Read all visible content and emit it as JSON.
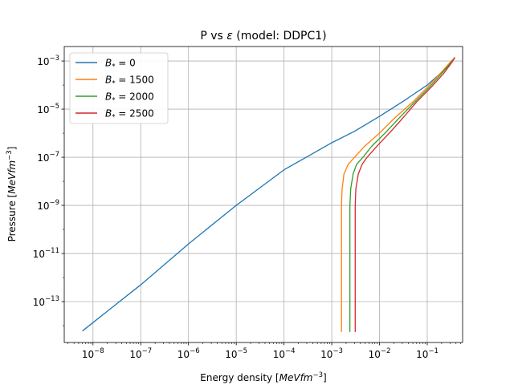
{
  "chart_data": {
    "type": "line",
    "title": "P vs ε (model: DDPC1)",
    "title_parts": [
      "P vs ",
      "ε",
      " (model: DDPC1)"
    ],
    "xlabel": "Energy density [MeVfm⁻³]",
    "xlabel_parts": [
      "Energy density [",
      "MeVfm",
      "−3",
      "]"
    ],
    "ylabel": "Pressure [MeVfm⁻³]",
    "ylabel_parts": [
      "Pressure [",
      "MeVfm",
      "−3",
      "]"
    ],
    "x_scale": "log",
    "y_scale": "log",
    "xlim": [
      2.5e-09,
      0.55
    ],
    "ylim": [
      2e-15,
      0.004
    ],
    "grid": true,
    "legend_position": "top-left",
    "x_major_ticks": [
      {
        "exp": -8,
        "label": "10",
        "sup": "−8"
      },
      {
        "exp": -7,
        "label": "10",
        "sup": "−7"
      },
      {
        "exp": -6,
        "label": "10",
        "sup": "−6"
      },
      {
        "exp": -5,
        "label": "10",
        "sup": "−5"
      },
      {
        "exp": -4,
        "label": "10",
        "sup": "−4"
      },
      {
        "exp": -3,
        "label": "10",
        "sup": "−3"
      },
      {
        "exp": -2,
        "label": "10",
        "sup": "−2"
      },
      {
        "exp": -1,
        "label": "10",
        "sup": "−1"
      }
    ],
    "y_major_ticks": [
      {
        "exp": -13,
        "label": "10",
        "sup": "−13"
      },
      {
        "exp": -11,
        "label": "10",
        "sup": "−11"
      },
      {
        "exp": -9,
        "label": "10",
        "sup": "−9"
      },
      {
        "exp": -7,
        "label": "10",
        "sup": "−7"
      },
      {
        "exp": -5,
        "label": "10",
        "sup": "−5"
      },
      {
        "exp": -3,
        "label": "10",
        "sup": "−3"
      }
    ],
    "series": [
      {
        "name": "B* = 0",
        "label_parts": [
          "B",
          "*",
          " = 0"
        ],
        "color": "#1f77b4",
        "points": [
          [
            6e-09,
            6e-15
          ],
          [
            2e-08,
            4e-14
          ],
          [
            1e-07,
            5e-13
          ],
          [
            1e-06,
            2.5e-11
          ],
          [
            1e-05,
            1e-09
          ],
          [
            0.0001,
            3e-08
          ],
          [
            0.001,
            4e-07
          ],
          [
            0.003,
            1.2e-06
          ],
          [
            0.01,
            5e-06
          ],
          [
            0.03,
            2e-05
          ],
          [
            0.1,
            0.0001
          ],
          [
            0.25,
            0.0005
          ]
        ]
      },
      {
        "name": "B* = 1500",
        "label_parts": [
          "B",
          "*",
          " = 1500"
        ],
        "color": "#ff7f0e",
        "points": [
          [
            0.0016,
            5.5e-15
          ],
          [
            0.0016,
            1e-13
          ],
          [
            0.0016,
            1e-11
          ],
          [
            0.0016,
            1e-09
          ],
          [
            0.00165,
            5e-09
          ],
          [
            0.0018,
            2e-08
          ],
          [
            0.0022,
            5e-08
          ],
          [
            0.003,
            1e-07
          ],
          [
            0.005,
            3e-07
          ],
          [
            0.01,
            1e-06
          ],
          [
            0.02,
            4e-06
          ],
          [
            0.05,
            2e-05
          ],
          [
            0.1,
            8e-05
          ],
          [
            0.2,
            0.00035
          ],
          [
            0.32,
            0.001
          ],
          [
            0.38,
            0.0014
          ]
        ]
      },
      {
        "name": "B* = 2000",
        "label_parts": [
          "B",
          "*",
          " = 2000"
        ],
        "color": "#2ca02c",
        "points": [
          [
            0.0024,
            5.5e-15
          ],
          [
            0.0024,
            1e-13
          ],
          [
            0.0024,
            1e-11
          ],
          [
            0.0024,
            1e-09
          ],
          [
            0.0025,
            5e-09
          ],
          [
            0.0028,
            2e-08
          ],
          [
            0.0033,
            5e-08
          ],
          [
            0.0045,
            1e-07
          ],
          [
            0.007,
            3e-07
          ],
          [
            0.013,
            1e-06
          ],
          [
            0.025,
            4e-06
          ],
          [
            0.055,
            2e-05
          ],
          [
            0.11,
            8e-05
          ],
          [
            0.2,
            0.0003
          ],
          [
            0.32,
            0.0009
          ],
          [
            0.38,
            0.0014
          ]
        ]
      },
      {
        "name": "B* = 2500",
        "label_parts": [
          "B",
          "*",
          " = 2500"
        ],
        "color": "#d62728",
        "points": [
          [
            0.0031,
            5.5e-15
          ],
          [
            0.0031,
            1e-13
          ],
          [
            0.0031,
            1e-11
          ],
          [
            0.0031,
            1e-09
          ],
          [
            0.0032,
            5e-09
          ],
          [
            0.0036,
            2e-08
          ],
          [
            0.0043,
            5e-08
          ],
          [
            0.0055,
            1e-07
          ],
          [
            0.009,
            3e-07
          ],
          [
            0.016,
            1e-06
          ],
          [
            0.03,
            4e-06
          ],
          [
            0.06,
            2e-05
          ],
          [
            0.12,
            8e-05
          ],
          [
            0.22,
            0.0003
          ],
          [
            0.33,
            0.0009
          ],
          [
            0.38,
            0.0014
          ]
        ]
      }
    ]
  }
}
